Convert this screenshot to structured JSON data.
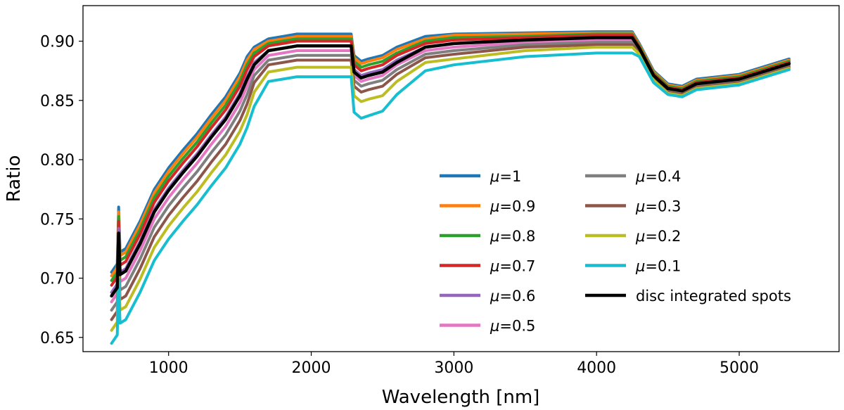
{
  "chart_data": {
    "type": "line",
    "title": "",
    "xlabel": "Wavelength [nm]",
    "ylabel": "Ratio",
    "xlim": [
      400,
      5700
    ],
    "ylim": [
      0.638,
      0.93
    ],
    "xticks": [
      1000,
      2000,
      3000,
      4000,
      5000
    ],
    "yticks": [
      0.65,
      0.7,
      0.75,
      0.8,
      0.85,
      0.9
    ],
    "ytick_labels": [
      "0.65",
      "0.70",
      "0.75",
      "0.80",
      "0.85",
      "0.90"
    ],
    "grid": false,
    "legend_position": "lower-right",
    "x": [
      600,
      640,
      650,
      660,
      700,
      800,
      900,
      1000,
      1100,
      1200,
      1300,
      1400,
      1500,
      1550,
      1600,
      1700,
      1800,
      1900,
      2000,
      2100,
      2200,
      2280,
      2300,
      2350,
      2400,
      2500,
      2600,
      2800,
      3000,
      3500,
      4000,
      4250,
      4300,
      4400,
      4500,
      4600,
      4700,
      5000,
      5350
    ],
    "series": [
      {
        "name": "μ=1",
        "color": "#1f77b4",
        "values": [
          0.705,
          0.712,
          0.76,
          0.722,
          0.725,
          0.748,
          0.775,
          0.793,
          0.808,
          0.822,
          0.838,
          0.853,
          0.873,
          0.887,
          0.895,
          0.902,
          0.904,
          0.906,
          0.906,
          0.906,
          0.906,
          0.906,
          0.888,
          0.883,
          0.885,
          0.888,
          0.895,
          0.904,
          0.906,
          0.907,
          0.908,
          0.908,
          0.898,
          0.875,
          0.864,
          0.862,
          0.868,
          0.872,
          0.885
        ]
      },
      {
        "name": "μ=0.9",
        "color": "#ff7f0e",
        "values": [
          0.702,
          0.709,
          0.756,
          0.719,
          0.722,
          0.745,
          0.772,
          0.79,
          0.805,
          0.819,
          0.835,
          0.85,
          0.87,
          0.884,
          0.893,
          0.9,
          0.902,
          0.904,
          0.904,
          0.904,
          0.904,
          0.904,
          0.886,
          0.881,
          0.883,
          0.886,
          0.893,
          0.902,
          0.905,
          0.906,
          0.907,
          0.907,
          0.897,
          0.874,
          0.863,
          0.861,
          0.867,
          0.871,
          0.884
        ]
      },
      {
        "name": "μ=0.8",
        "color": "#2ca02c",
        "values": [
          0.698,
          0.705,
          0.752,
          0.715,
          0.718,
          0.741,
          0.768,
          0.786,
          0.801,
          0.815,
          0.831,
          0.846,
          0.866,
          0.88,
          0.89,
          0.898,
          0.9,
          0.902,
          0.902,
          0.902,
          0.902,
          0.902,
          0.883,
          0.878,
          0.88,
          0.883,
          0.89,
          0.9,
          0.903,
          0.904,
          0.906,
          0.906,
          0.896,
          0.873,
          0.862,
          0.86,
          0.866,
          0.87,
          0.883
        ]
      },
      {
        "name": "μ=0.7",
        "color": "#d62728",
        "values": [
          0.694,
          0.701,
          0.748,
          0.711,
          0.714,
          0.737,
          0.764,
          0.782,
          0.797,
          0.811,
          0.827,
          0.842,
          0.862,
          0.876,
          0.887,
          0.896,
          0.898,
          0.9,
          0.9,
          0.9,
          0.9,
          0.9,
          0.88,
          0.875,
          0.877,
          0.88,
          0.888,
          0.898,
          0.901,
          0.903,
          0.905,
          0.905,
          0.895,
          0.872,
          0.861,
          0.859,
          0.865,
          0.869,
          0.882
        ]
      },
      {
        "name": "μ=0.6",
        "color": "#9467bd",
        "values": [
          0.688,
          0.695,
          0.742,
          0.705,
          0.708,
          0.731,
          0.758,
          0.776,
          0.791,
          0.805,
          0.821,
          0.836,
          0.856,
          0.87,
          0.882,
          0.892,
          0.894,
          0.896,
          0.896,
          0.896,
          0.896,
          0.896,
          0.876,
          0.871,
          0.873,
          0.876,
          0.884,
          0.895,
          0.898,
          0.901,
          0.903,
          0.903,
          0.894,
          0.871,
          0.86,
          0.858,
          0.864,
          0.868,
          0.881
        ]
      },
      {
        "name": "μ=0.5",
        "color": "#e377c2",
        "values": [
          0.68,
          0.687,
          0.734,
          0.697,
          0.7,
          0.723,
          0.75,
          0.768,
          0.783,
          0.797,
          0.813,
          0.828,
          0.848,
          0.862,
          0.876,
          0.888,
          0.89,
          0.892,
          0.892,
          0.892,
          0.892,
          0.892,
          0.871,
          0.866,
          0.868,
          0.871,
          0.88,
          0.892,
          0.895,
          0.899,
          0.901,
          0.901,
          0.893,
          0.87,
          0.859,
          0.857,
          0.863,
          0.867,
          0.88
        ]
      },
      {
        "name": "μ=0.4",
        "color": "#7f7f7f",
        "values": [
          0.673,
          0.68,
          0.727,
          0.69,
          0.693,
          0.716,
          0.743,
          0.761,
          0.776,
          0.79,
          0.806,
          0.821,
          0.841,
          0.855,
          0.871,
          0.884,
          0.886,
          0.888,
          0.888,
          0.888,
          0.888,
          0.888,
          0.867,
          0.862,
          0.864,
          0.867,
          0.876,
          0.889,
          0.892,
          0.897,
          0.899,
          0.899,
          0.892,
          0.869,
          0.858,
          0.856,
          0.862,
          0.866,
          0.879
        ]
      },
      {
        "name": "μ=0.3",
        "color": "#8c564b",
        "values": [
          0.665,
          0.672,
          0.719,
          0.682,
          0.685,
          0.708,
          0.735,
          0.753,
          0.768,
          0.782,
          0.798,
          0.813,
          0.833,
          0.847,
          0.865,
          0.88,
          0.882,
          0.884,
          0.884,
          0.884,
          0.884,
          0.884,
          0.862,
          0.857,
          0.859,
          0.862,
          0.872,
          0.886,
          0.889,
          0.895,
          0.897,
          0.897,
          0.891,
          0.868,
          0.857,
          0.855,
          0.861,
          0.865,
          0.878
        ]
      },
      {
        "name": "μ=0.2",
        "color": "#bcbd22",
        "values": [
          0.656,
          0.663,
          0.71,
          0.673,
          0.676,
          0.699,
          0.726,
          0.744,
          0.759,
          0.773,
          0.789,
          0.804,
          0.824,
          0.838,
          0.857,
          0.874,
          0.876,
          0.878,
          0.878,
          0.878,
          0.878,
          0.878,
          0.854,
          0.849,
          0.851,
          0.854,
          0.866,
          0.882,
          0.885,
          0.892,
          0.895,
          0.895,
          0.889,
          0.867,
          0.856,
          0.854,
          0.86,
          0.864,
          0.877
        ]
      },
      {
        "name": "μ=0.1",
        "color": "#17becf",
        "values": [
          0.645,
          0.652,
          0.699,
          0.662,
          0.665,
          0.688,
          0.715,
          0.733,
          0.748,
          0.762,
          0.778,
          0.793,
          0.813,
          0.827,
          0.845,
          0.866,
          0.868,
          0.87,
          0.87,
          0.87,
          0.87,
          0.87,
          0.84,
          0.835,
          0.837,
          0.841,
          0.855,
          0.875,
          0.88,
          0.887,
          0.89,
          0.89,
          0.887,
          0.865,
          0.855,
          0.853,
          0.859,
          0.863,
          0.876
        ]
      },
      {
        "name": "disc integrated spots",
        "color": "#000000",
        "values": [
          0.685,
          0.692,
          0.738,
          0.703,
          0.706,
          0.729,
          0.756,
          0.774,
          0.789,
          0.803,
          0.819,
          0.834,
          0.854,
          0.868,
          0.88,
          0.892,
          0.894,
          0.896,
          0.896,
          0.896,
          0.896,
          0.896,
          0.874,
          0.869,
          0.871,
          0.874,
          0.882,
          0.895,
          0.898,
          0.901,
          0.903,
          0.903,
          0.894,
          0.871,
          0.86,
          0.858,
          0.864,
          0.868,
          0.881
        ]
      }
    ]
  }
}
